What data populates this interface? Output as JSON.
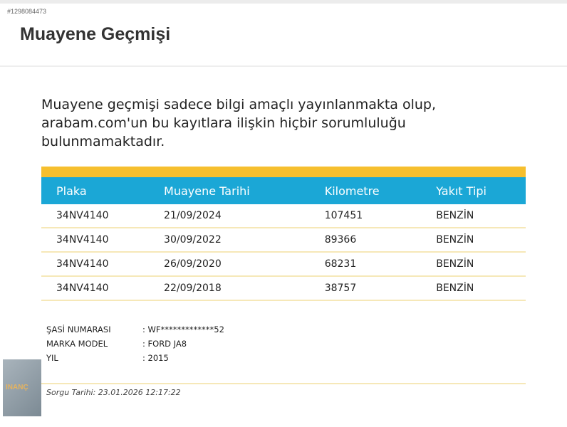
{
  "listing_id": "#1298084473",
  "title": "Muayene Geçmişi",
  "notice": "Muayene geçmişi sadece bilgi amaçlı yayınlanmakta olup, arabam.com'un bu kayıtlara ilişkin hiçbir sorumluluğu bulunmamaktadır.",
  "colors": {
    "header_blue": "#1ba7d6",
    "accent_yellow": "#f6bf2e"
  },
  "table": {
    "headers": [
      "Plaka",
      "Muayene Tarihi",
      "Kilometre",
      "Yakıt Tipi"
    ],
    "rows": [
      [
        "34NV4140",
        "21/09/2024",
        "107451",
        "BENZİN"
      ],
      [
        "34NV4140",
        "30/09/2022",
        "89366",
        "BENZİN"
      ],
      [
        "34NV4140",
        "26/09/2020",
        "68231",
        "BENZİN"
      ],
      [
        "34NV4140",
        "22/09/2018",
        "38757",
        "BENZİN"
      ]
    ]
  },
  "info": [
    {
      "label": "ŞASİ NUMARASI",
      "value": ": WF*************52"
    },
    {
      "label": "MARKA MODEL",
      "value": ": FORD JA8"
    },
    {
      "label": "YIL",
      "value": ": 2015"
    }
  ],
  "query_date": "Sorgu Tarihi: 23.01.2026 12:17:22",
  "logo_text": "INANÇ"
}
